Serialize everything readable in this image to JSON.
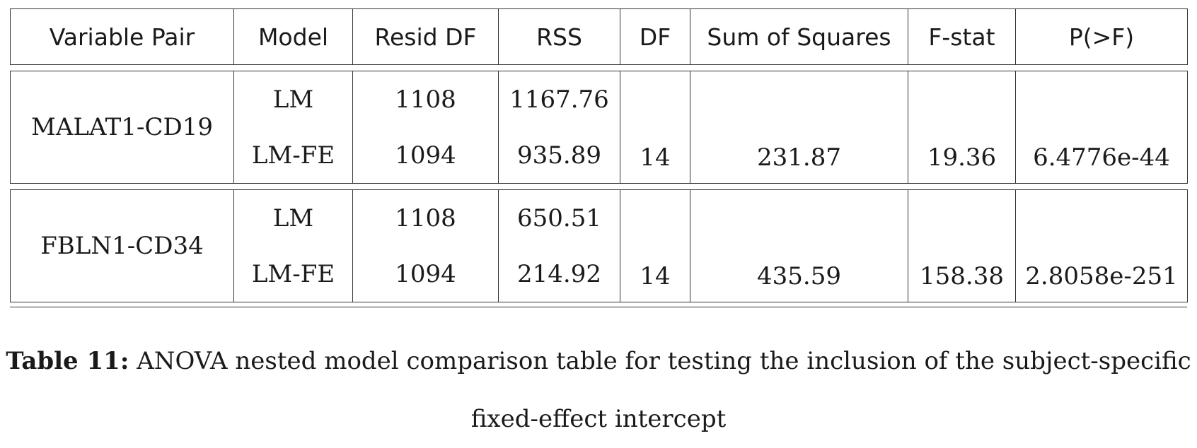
{
  "table": {
    "headers": [
      "Variable Pair",
      "Model",
      "Resid DF",
      "RSS",
      "DF",
      "Sum of Squares",
      "F-stat",
      "P(>F)"
    ],
    "groups": [
      {
        "pair": "MALAT1-CD19",
        "models": [
          "LM",
          "LM-FE"
        ],
        "resid_df": [
          "1108",
          "1094"
        ],
        "rss": [
          "1167.76",
          "935.89"
        ],
        "df": "14",
        "sum_sq": "231.87",
        "f_stat": "19.36",
        "p_value": "6.4776e-44"
      },
      {
        "pair": "FBLN1-CD34",
        "models": [
          "LM",
          "LM-FE"
        ],
        "resid_df": [
          "1108",
          "1094"
        ],
        "rss": [
          "650.51",
          "214.92"
        ],
        "df": "14",
        "sum_sq": "435.59",
        "f_stat": "158.38",
        "p_value": "2.8058e-251"
      }
    ]
  },
  "caption": {
    "label": "Table 11:",
    "line1": "ANOVA nested model comparison table for testing the inclusion of the subject-specific",
    "line2": "fixed-effect intercept"
  }
}
